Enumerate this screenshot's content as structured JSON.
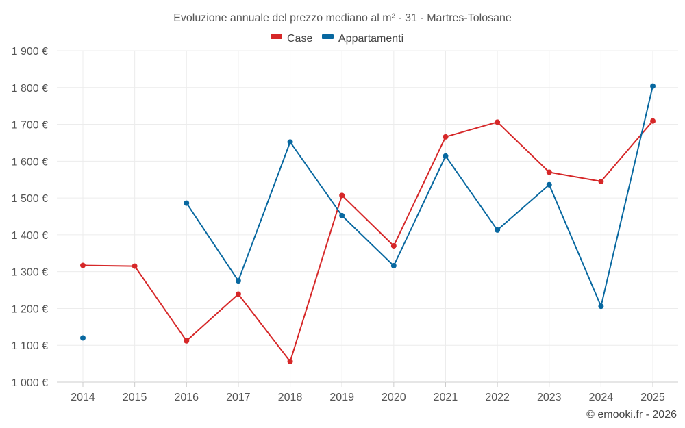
{
  "chart_data": {
    "type": "line",
    "title": "Evoluzione annuale del prezzo mediano al m² - 31 - Martres-Tolosane",
    "xlabel": "",
    "ylabel": "",
    "categories": [
      "2014",
      "2015",
      "2016",
      "2017",
      "2018",
      "2019",
      "2020",
      "2021",
      "2022",
      "2023",
      "2024",
      "2025"
    ],
    "ylim": [
      1000,
      1900
    ],
    "yticks": [
      1000,
      1100,
      1200,
      1300,
      1400,
      1500,
      1600,
      1700,
      1800,
      1900
    ],
    "ytick_labels": [
      "1 000 €",
      "1 100 €",
      "1 200 €",
      "1 300 €",
      "1 400 €",
      "1 500 €",
      "1 600 €",
      "1 700 €",
      "1 800 €",
      "1 900 €"
    ],
    "grid": true,
    "legend_position": "top-center",
    "series": [
      {
        "name": "Case",
        "color": "#d62728",
        "values": [
          1317,
          1315,
          1112,
          1239,
          1056,
          1507,
          1370,
          1666,
          1706,
          1570,
          1545,
          1709
        ]
      },
      {
        "name": "Appartamenti",
        "color": "#0868a0",
        "values": [
          1120,
          null,
          1486,
          1275,
          1652,
          1452,
          1316,
          1614,
          1413,
          1536,
          1206,
          1804
        ]
      }
    ]
  },
  "credit": "© emooki.fr - 2026"
}
